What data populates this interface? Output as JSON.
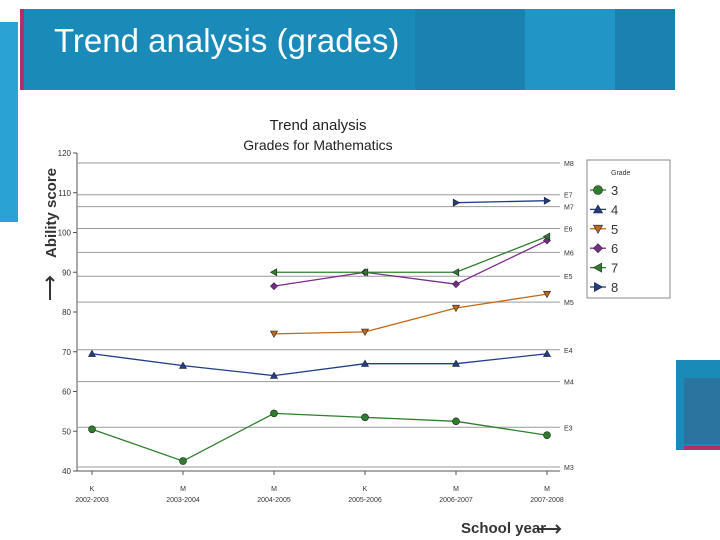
{
  "slide": {
    "title": "Trend analysis (grades)"
  },
  "chart_data": {
    "type": "line",
    "title": "Trend analysis",
    "subtitle": "Grades for Mathematics",
    "ylabel": "Ability score",
    "xlabel": "School year",
    "ylim": [
      40,
      120
    ],
    "yticks": [
      40,
      50,
      60,
      70,
      80,
      90,
      100,
      110,
      120
    ],
    "categories": [
      "2002-2003",
      "2003-2004",
      "2004-2005",
      "2005-2006",
      "2006-2007",
      "2007-2008"
    ],
    "category_marks": [
      "K",
      "M",
      "M",
      "K",
      "M",
      "M"
    ],
    "reference_lines": [
      {
        "label": "M8",
        "value": 117.5
      },
      {
        "label": "E7",
        "value": 109.5
      },
      {
        "label": "M7",
        "value": 106.5
      },
      {
        "label": "E6",
        "value": 101
      },
      {
        "label": "M6",
        "value": 95
      },
      {
        "label": "E5",
        "value": 89
      },
      {
        "label": "M5",
        "value": 82.5
      },
      {
        "label": "E4",
        "value": 70.5
      },
      {
        "label": "M4",
        "value": 62.5
      },
      {
        "label": "E3",
        "value": 51
      },
      {
        "label": "M3",
        "value": 41
      }
    ],
    "legend": {
      "title": "Grade",
      "position": "right"
    },
    "series": [
      {
        "name": "3",
        "color": "#2e7d2e",
        "marker": "circle",
        "values": [
          50.5,
          42.5,
          54.5,
          53.5,
          52.5,
          49
        ]
      },
      {
        "name": "4",
        "color": "#1f3d8a",
        "marker": "triangle-up",
        "values": [
          69.5,
          66.5,
          64,
          67,
          67,
          69.5
        ]
      },
      {
        "name": "5",
        "color": "#c06a1a",
        "marker": "triangle-down",
        "values": [
          null,
          null,
          74.5,
          75,
          81,
          84.5
        ]
      },
      {
        "name": "6",
        "color": "#7a2a8a",
        "marker": "diamond",
        "values": [
          null,
          null,
          86.5,
          90,
          87,
          98
        ]
      },
      {
        "name": "7",
        "color": "#2e7d2e",
        "marker": "triangle-left",
        "values": [
          null,
          null,
          90,
          90,
          90,
          99
        ]
      },
      {
        "name": "8",
        "color": "#1f3d8a",
        "marker": "triangle-right",
        "values": [
          null,
          null,
          null,
          null,
          107.5,
          108
        ]
      }
    ]
  }
}
